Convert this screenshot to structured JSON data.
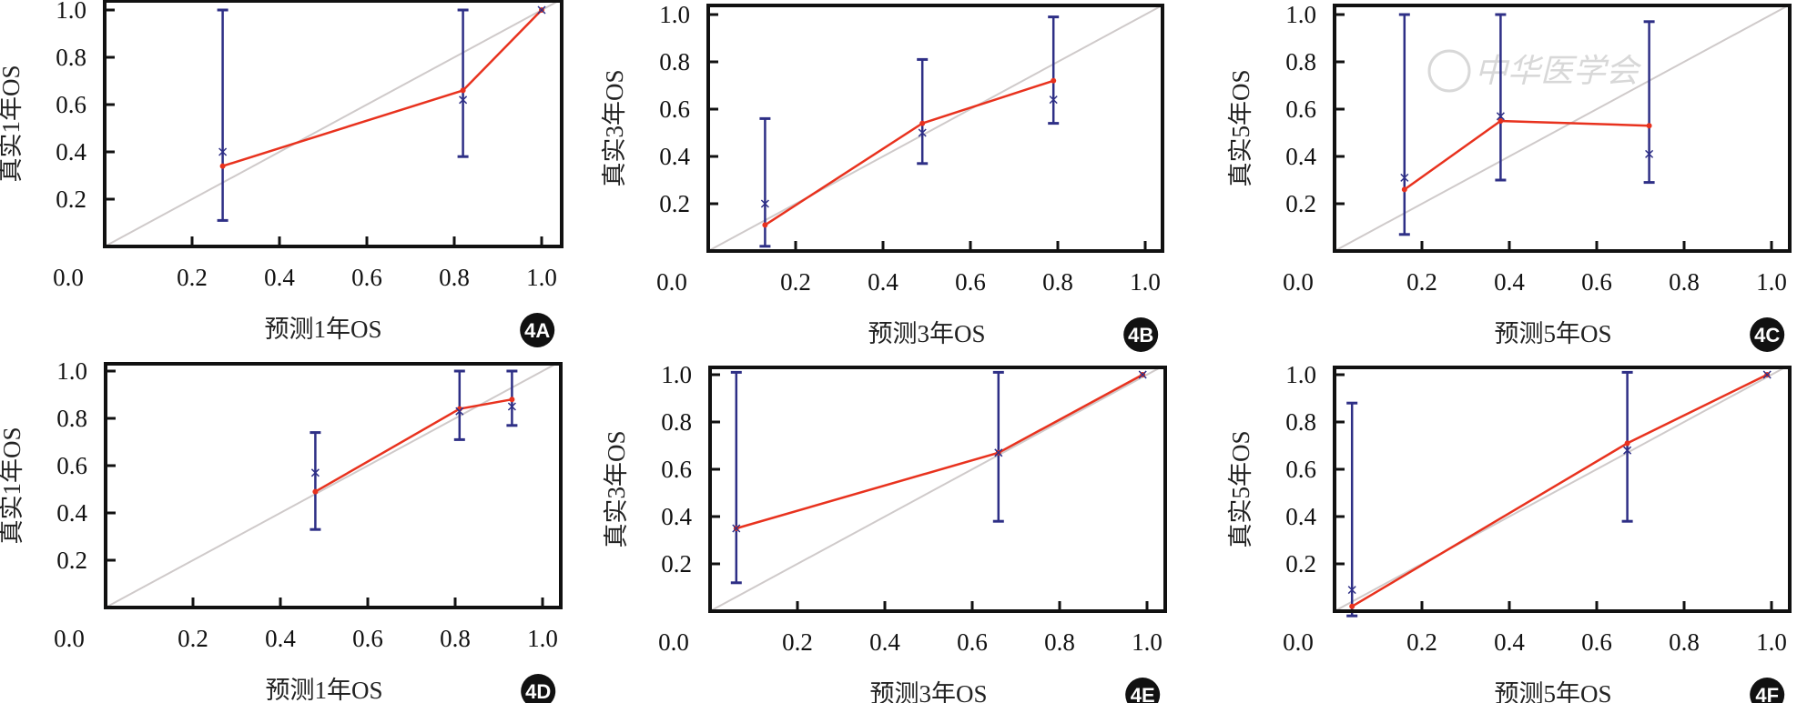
{
  "figure": {
    "watermark": "中华医学会",
    "colors": {
      "calibration_line": "#e8321e",
      "error_bar": "#2e2f86",
      "ideal_line": "#cfcaca",
      "frame": "#111111",
      "badge": "#111111"
    }
  },
  "chart_data": [
    {
      "id": "4A",
      "type": "line",
      "badge": "4A",
      "xlabel": "预测1年OS",
      "ylabel": "真实1年OS",
      "xlim": [
        0,
        1.04
      ],
      "ylim": [
        0,
        1.04
      ],
      "x_ticks": [
        "0.2",
        "0.4",
        "0.6",
        "0.8",
        "1.0"
      ],
      "y_ticks": [
        "0.2",
        "0.4",
        "0.6",
        "0.8",
        "1.0"
      ],
      "origin_label": "0.0",
      "predicted": [
        0.27,
        0.82,
        1.0
      ],
      "calibrated": [
        0.34,
        0.66,
        1.0
      ],
      "observed": [
        0.4,
        0.62,
        1.0
      ],
      "ci_low": [
        0.11,
        0.38,
        null
      ],
      "ci_high": [
        1.0,
        1.0,
        null
      ]
    },
    {
      "id": "4B",
      "type": "line",
      "badge": "4B",
      "xlabel": "预测3年OS",
      "ylabel": "真实3年OS",
      "xlim": [
        0,
        1.04
      ],
      "ylim": [
        0,
        1.03
      ],
      "x_ticks": [
        "0.2",
        "0.4",
        "0.6",
        "0.8",
        "1.0"
      ],
      "y_ticks": [
        "0.2",
        "0.4",
        "0.6",
        "0.8",
        "1.0"
      ],
      "origin_label": "0.0",
      "predicted": [
        0.13,
        0.49,
        0.79
      ],
      "calibrated": [
        0.11,
        0.54,
        0.72
      ],
      "observed": [
        0.2,
        0.5,
        0.64
      ],
      "ci_low": [
        0.02,
        0.37,
        0.54
      ],
      "ci_high": [
        0.56,
        0.81,
        0.99
      ]
    },
    {
      "id": "4C",
      "type": "line",
      "badge": "4C",
      "xlabel": "预测5年OS",
      "ylabel": "真实5年OS",
      "xlim": [
        0,
        1.04
      ],
      "ylim": [
        0,
        1.03
      ],
      "x_ticks": [
        "0.2",
        "0.4",
        "0.6",
        "0.8",
        "1.0"
      ],
      "y_ticks": [
        "0.2",
        "0.4",
        "0.6",
        "0.8",
        "1.0"
      ],
      "origin_label": "0.0",
      "predicted": [
        0.16,
        0.38,
        0.72
      ],
      "calibrated": [
        0.26,
        0.55,
        0.53
      ],
      "observed": [
        0.31,
        0.57,
        0.41
      ],
      "ci_low": [
        0.07,
        0.3,
        0.29
      ],
      "ci_high": [
        1.0,
        1.0,
        0.97
      ]
    },
    {
      "id": "4D",
      "type": "line",
      "badge": "4D",
      "xlabel": "预测1年OS",
      "ylabel": "真实1年OS",
      "xlim": [
        0,
        1.04
      ],
      "ylim": [
        0,
        1.03
      ],
      "x_ticks": [
        "0.2",
        "0.4",
        "0.6",
        "0.8",
        "1.0"
      ],
      "y_ticks": [
        "0.2",
        "0.4",
        "0.6",
        "0.8",
        "1.0"
      ],
      "origin_label": "0.0",
      "predicted": [
        0.48,
        0.81,
        0.93
      ],
      "calibrated": [
        0.49,
        0.84,
        0.88
      ],
      "observed": [
        0.57,
        0.83,
        0.85
      ],
      "ci_low": [
        0.33,
        0.71,
        0.77
      ],
      "ci_high": [
        0.74,
        1.0,
        1.0
      ]
    },
    {
      "id": "4E",
      "type": "line",
      "badge": "4E",
      "xlabel": "预测3年OS",
      "ylabel": "真实3年OS",
      "xlim": [
        0,
        1.04
      ],
      "ylim": [
        0,
        1.03
      ],
      "x_ticks": [
        "0.2",
        "0.4",
        "0.6",
        "0.8",
        "1.0"
      ],
      "y_ticks": [
        "0.2",
        "0.4",
        "0.6",
        "0.8",
        "1.0"
      ],
      "origin_label": "0.0",
      "predicted": [
        0.06,
        0.66,
        0.99
      ],
      "calibrated": [
        0.35,
        0.67,
        1.0
      ],
      "observed": [
        0.35,
        0.67,
        1.0
      ],
      "ci_low": [
        0.12,
        0.38,
        null
      ],
      "ci_high": [
        1.01,
        1.01,
        null
      ]
    },
    {
      "id": "4F",
      "type": "line",
      "badge": "4F",
      "xlabel": "预测5年OS",
      "ylabel": "真实5年OS",
      "xlim": [
        0,
        1.04
      ],
      "ylim": [
        0,
        1.03
      ],
      "x_ticks": [
        "0.2",
        "0.4",
        "0.6",
        "0.8",
        "1.0"
      ],
      "y_ticks": [
        "0.2",
        "0.4",
        "0.6",
        "0.8",
        "1.0"
      ],
      "origin_label": "0.0",
      "predicted": [
        0.04,
        0.67,
        0.99
      ],
      "calibrated": [
        0.02,
        0.71,
        1.0
      ],
      "observed": [
        0.09,
        0.68,
        1.0
      ],
      "ci_low": [
        -0.02,
        0.38,
        null
      ],
      "ci_high": [
        0.88,
        1.01,
        null
      ]
    }
  ]
}
